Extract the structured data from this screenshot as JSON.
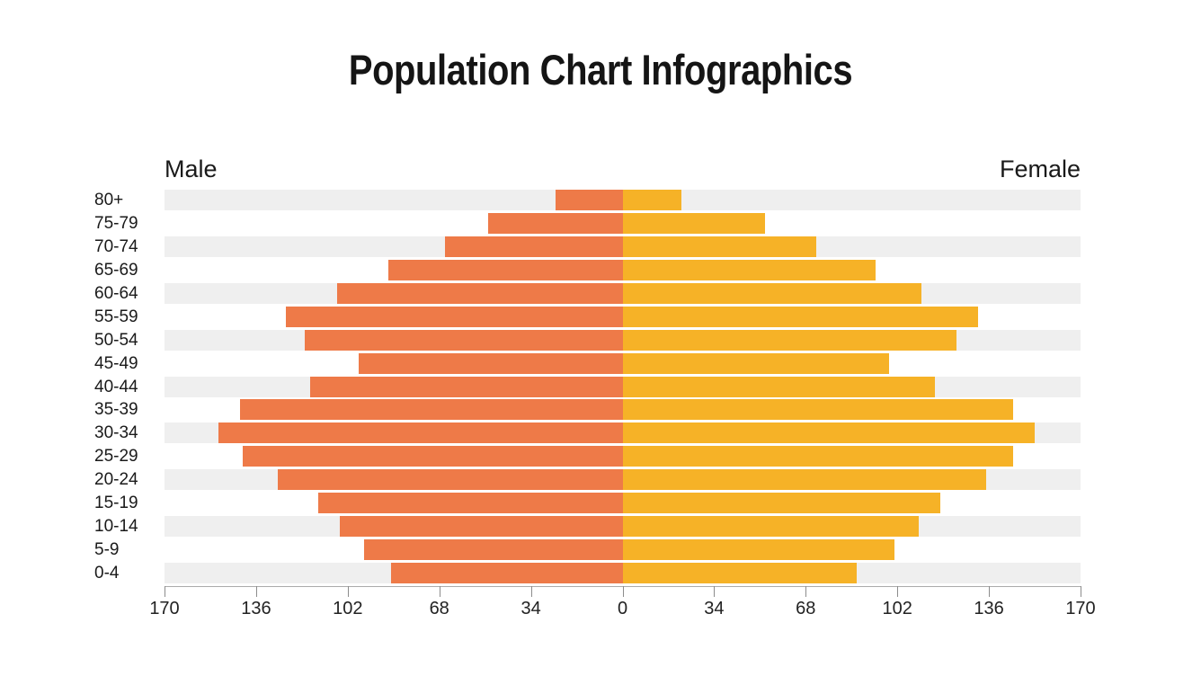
{
  "title": "Population Chart Infographics",
  "chart_data": {
    "type": "bar",
    "subtype": "population-pyramid",
    "title": "Population Chart Infographics",
    "left_header": "Male",
    "right_header": "Female",
    "categories": [
      "80+",
      "75-79",
      "70-74",
      "65-69",
      "60-64",
      "55-59",
      "50-54",
      "45-49",
      "40-44",
      "35-39",
      "30-34",
      "25-29",
      "20-24",
      "15-19",
      "10-14",
      "5-9",
      "0-4"
    ],
    "series": [
      {
        "name": "Male",
        "side": "left",
        "color": "#EE7A48",
        "values": [
          25,
          50,
          66,
          87,
          106,
          125,
          118,
          98,
          116,
          142,
          150,
          141,
          128,
          113,
          105,
          96,
          86
        ]
      },
      {
        "name": "Female",
        "side": "right",
        "color": "#F6B227",
        "values": [
          22,
          53,
          72,
          94,
          111,
          132,
          124,
          99,
          116,
          145,
          153,
          145,
          135,
          118,
          110,
          101,
          87
        ]
      }
    ],
    "axis_tick_labels": [
      "170",
      "136",
      "102",
      "68",
      "34",
      "0",
      "34",
      "68",
      "102",
      "136",
      "170"
    ],
    "x_max_each_side": 170,
    "xlabel": "",
    "ylabel": "",
    "legend_position": "none",
    "grid": "alternating-row-stripes",
    "stripe_color": "#EFEFEF",
    "axis_color": "#ABABAB",
    "background": "#FFFFFF"
  }
}
